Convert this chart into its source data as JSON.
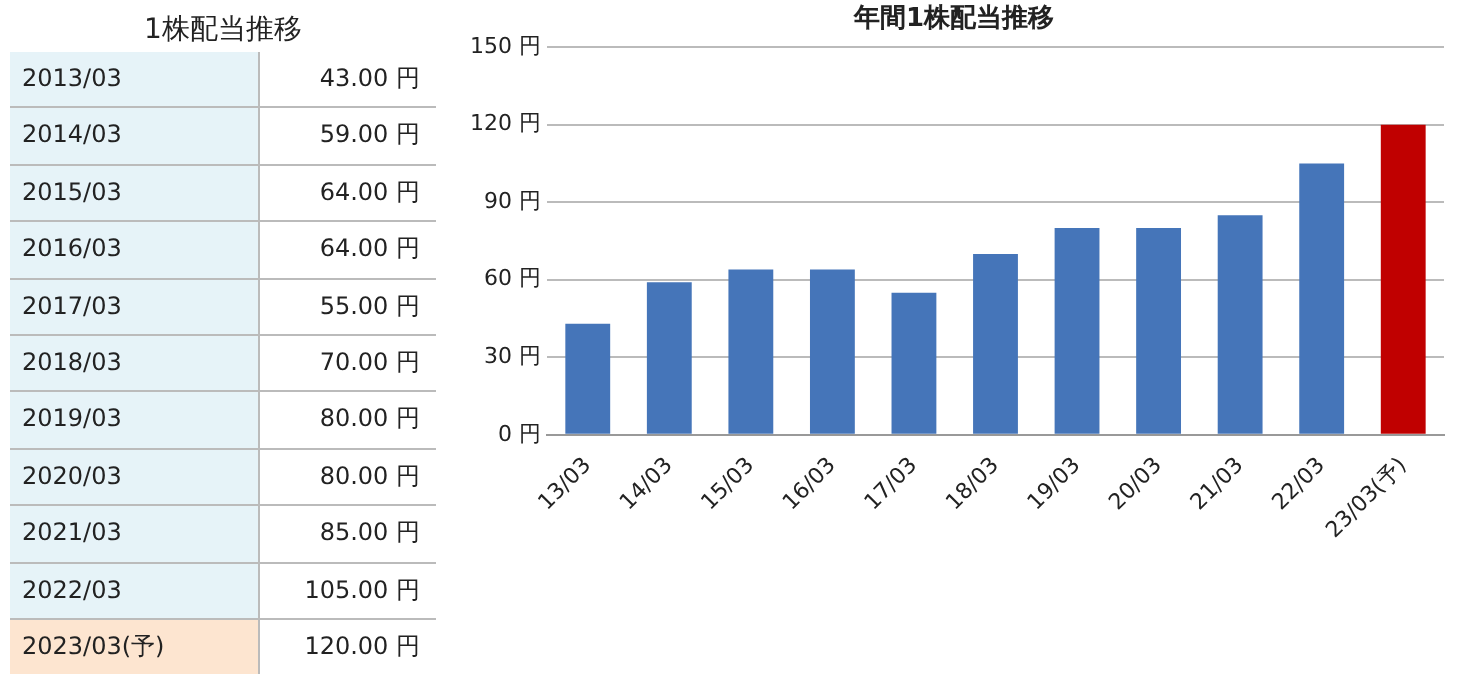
{
  "chart_data": [
    {
      "type": "other",
      "title": "1株配当推移",
      "categories": [
        "2013/03",
        "2014/03",
        "2015/03",
        "2016/03",
        "2017/03",
        "2018/03",
        "2019/03",
        "2020/03",
        "2021/03",
        "2022/03",
        "2023/03(予)"
      ],
      "value_labels": [
        "43.00 円",
        "59.00 円",
        "64.00 円",
        "64.00 円",
        "55.00 円",
        "70.00 円",
        "80.00 円",
        "80.00 円",
        "85.00 円",
        "105.00 円",
        "120.00 円"
      ],
      "colors": [
        "#e6f3f8",
        "#e6f3f8",
        "#e6f3f8",
        "#e6f3f8",
        "#e6f3f8",
        "#e6f3f8",
        "#e6f3f8",
        "#e6f3f8",
        "#e6f3f8",
        "#e6f3f8",
        "#fde5d0"
      ]
    },
    {
      "type": "bar",
      "title": "年間1株配当推移",
      "categories": [
        "13/03",
        "14/03",
        "15/03",
        "16/03",
        "17/03",
        "18/03",
        "19/03",
        "20/03",
        "21/03",
        "22/03",
        "23/03(予)"
      ],
      "values": [
        43,
        59,
        64,
        64,
        55,
        70,
        80,
        80,
        85,
        105,
        120
      ],
      "colors": [
        "#4575b9",
        "#4575b9",
        "#4575b9",
        "#4575b9",
        "#4575b9",
        "#4575b9",
        "#4575b9",
        "#4575b9",
        "#4575b9",
        "#4575b9",
        "#c00000"
      ],
      "ylim": [
        0,
        150
      ],
      "yticks": [
        {
          "value": 0,
          "label": "0 円"
        },
        {
          "value": 30,
          "label": "30 円"
        },
        {
          "value": 60,
          "label": "60 円"
        },
        {
          "value": 90,
          "label": "90 円"
        },
        {
          "value": 120,
          "label": "120 円"
        },
        {
          "value": 150,
          "label": "150 円"
        }
      ],
      "grid": "y",
      "legend": false
    }
  ]
}
